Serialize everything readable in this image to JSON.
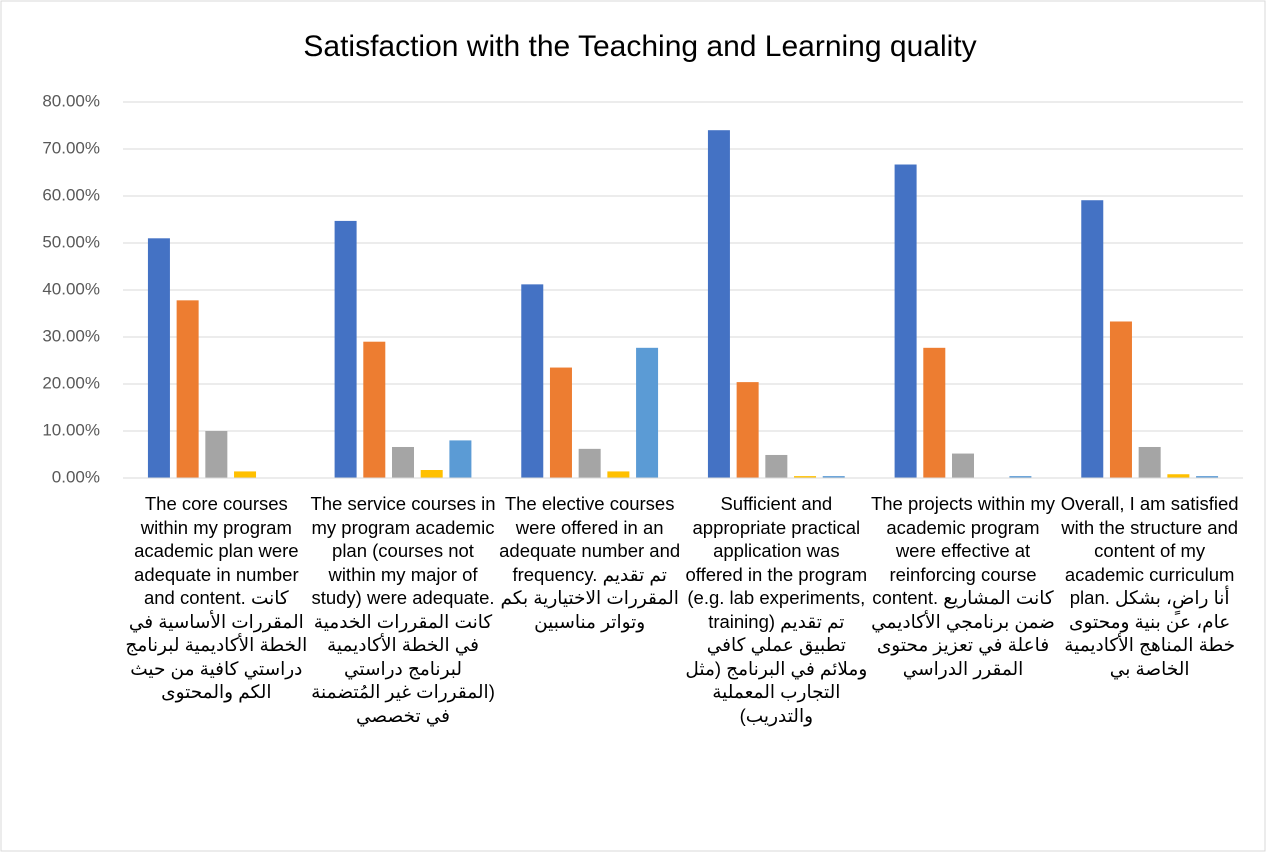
{
  "chart_data": {
    "type": "bar",
    "title": "Satisfaction with the Teaching and Learning quality",
    "categories": [
      "The core courses within my program academic plan were adequate in number and content.  كانت المقررات الأساسية في الخطة الأكاديمية لبرنامج دراستي كافية من حيث الكم والمحتوى",
      "The service courses in my program academic plan (courses not within my major of study) were adequate.  كانت المقررات الخدمية في الخطة الأكاديمية لبرنامج دراستي (المقررات غير المُتضمنة في تخصصي",
      "The elective courses were offered in an adequate number and frequency.  تم تقديم المقررات الاختيارية بكم وتواتر مناسبين",
      "Sufficient and appropriate practical application was offered in the program (e.g. lab experiments, training)  تم تقديم تطبيق عملي كافي وملائم في البرنامج (مثل التجارب المعملية والتدريب)",
      "The projects within my academic program were effective at reinforcing course content.  كانت المشاريع ضمن برنامجي الأكاديمي فاعلة في تعزيز محتوى المقرر الدراسي",
      "Overall, I am satisfied with the structure and content of my academic curriculum plan. أنا راضٍ، بشكل عام، عن بنية ومحتوى خطة المناهج الأكاديمية الخاصة بي"
    ],
    "series": [
      {
        "color": "#4472c4",
        "values": [
          51,
          54.7,
          41.2,
          74,
          66.7,
          59.1
        ]
      },
      {
        "color": "#ed7d31",
        "values": [
          37.8,
          29,
          23.5,
          20.4,
          27.7,
          33.3
        ]
      },
      {
        "color": "#a5a5a5",
        "values": [
          10,
          6.6,
          6.2,
          4.9,
          5.2,
          6.6
        ]
      },
      {
        "color": "#ffc000",
        "values": [
          1.4,
          1.7,
          1.4,
          0.4,
          0,
          0.8
        ]
      },
      {
        "color": "#5b9bd5",
        "values": [
          0,
          8,
          27.7,
          0.4,
          0.4,
          0.4
        ]
      }
    ],
    "ylim": [
      0,
      80
    ],
    "yticks": [
      {
        "value": 0,
        "label": "0.00%"
      },
      {
        "value": 10,
        "label": "10.00%"
      },
      {
        "value": 20,
        "label": "20.00%"
      },
      {
        "value": 30,
        "label": "30.00%"
      },
      {
        "value": 40,
        "label": "40.00%"
      },
      {
        "value": 50,
        "label": "50.00%"
      },
      {
        "value": 60,
        "label": "60.00%"
      },
      {
        "value": 70,
        "label": "70.00%"
      },
      {
        "value": 80,
        "label": "80.00%"
      }
    ],
    "grid": true
  }
}
